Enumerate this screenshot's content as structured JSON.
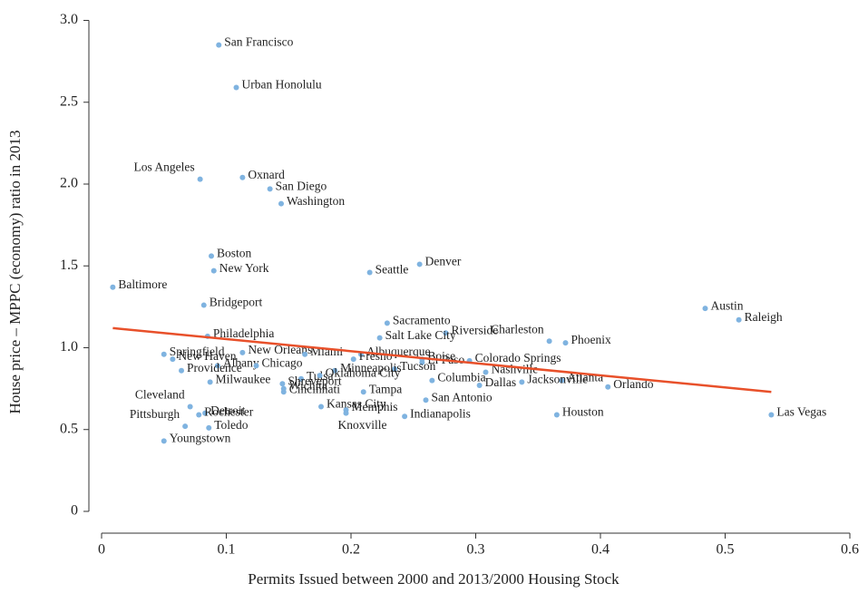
{
  "chart_data": {
    "type": "scatter",
    "x_label": "Permits Issued between 2000 and 2013/2000 Housing Stock",
    "y_label": "House price – MPPC (economy) ratio in 2013",
    "color": "#7fb3e0",
    "labels": [
      "San Francisco",
      "Urban Honolulu",
      "Los Angeles",
      "Oxnard",
      "San Diego",
      "Washington",
      "Boston",
      "New York",
      "Baltimore",
      "Bridgeport",
      "Seattle",
      "Denver",
      "Austin",
      "Raleigh",
      "Sacramento",
      "Riverside",
      "Salt Lake City",
      "Charleston",
      "Phoenix",
      "Philadelphia",
      "Springfield",
      "New Orleans",
      "Miami",
      "New Haven",
      "Albany",
      "Chicago",
      "Providence",
      "Albuquerque",
      "Fresno",
      "Boise",
      "El Paso",
      "Colorado Springs",
      "Tucson",
      "Nashville",
      "Atlanta",
      "Jacksonville",
      "Orlando",
      "Dallas",
      "Columbia",
      "Milwaukee",
      "Tulsa",
      "Shreveport",
      "Minneapolis",
      "Oklahoma City",
      "Cincinnati",
      "Wichita",
      "Tampa",
      "Cleveland",
      "Detroit",
      "Rochester",
      "Pittsburgh",
      "Toledo",
      "Youngstown",
      "Kansas City",
      "Memphis",
      "Knoxville",
      "Indianapolis",
      "San Antonio",
      "Houston",
      "Las Vegas"
    ],
    "x": [
      0.094,
      0.108,
      0.079,
      0.113,
      0.135,
      0.144,
      0.088,
      0.09,
      0.009,
      0.082,
      0.215,
      0.255,
      0.484,
      0.511,
      0.229,
      0.276,
      0.223,
      0.359,
      0.372,
      0.085,
      0.05,
      0.113,
      0.163,
      0.057,
      0.093,
      0.124,
      0.064,
      0.208,
      0.202,
      0.257,
      0.257,
      0.295,
      0.235,
      0.308,
      0.369,
      0.337,
      0.406,
      0.303,
      0.265,
      0.087,
      0.16,
      0.145,
      0.187,
      0.175,
      0.146,
      0.146,
      0.21,
      0.071,
      0.083,
      0.078,
      0.067,
      0.086,
      0.05,
      0.176,
      0.196,
      0.196,
      0.243,
      0.26,
      0.365,
      0.537
    ],
    "values": [
      2.85,
      2.59,
      2.03,
      2.04,
      1.97,
      1.88,
      1.56,
      1.47,
      1.37,
      1.26,
      1.46,
      1.51,
      1.24,
      1.17,
      1.15,
      1.09,
      1.06,
      1.04,
      1.03,
      1.07,
      0.96,
      0.97,
      0.96,
      0.93,
      0.89,
      0.89,
      0.86,
      0.96,
      0.93,
      0.93,
      0.91,
      0.92,
      0.87,
      0.85,
      0.8,
      0.79,
      0.76,
      0.77,
      0.8,
      0.79,
      0.81,
      0.78,
      0.86,
      0.83,
      0.73,
      0.75,
      0.73,
      0.64,
      0.6,
      0.59,
      0.52,
      0.51,
      0.43,
      0.64,
      0.62,
      0.6,
      0.58,
      0.68,
      0.59,
      0.59
    ],
    "fit": {
      "color": "#e8502a",
      "x": [
        0.009,
        0.537
      ],
      "y": [
        1.12,
        0.73
      ]
    },
    "xlim": [
      -0.004,
      0.61
    ],
    "ylim": [
      -0.06,
      3.03
    ],
    "xticks": [
      0,
      0.1,
      0.2,
      0.3,
      0.4,
      0.5,
      0.6
    ],
    "yticks": [
      0,
      0.5,
      {
        "value": 1,
        "label": "1.0"
      },
      1.5,
      {
        "value": 2,
        "label": "2.0"
      },
      2.5,
      {
        "value": 3,
        "label": "3.0"
      }
    ]
  }
}
